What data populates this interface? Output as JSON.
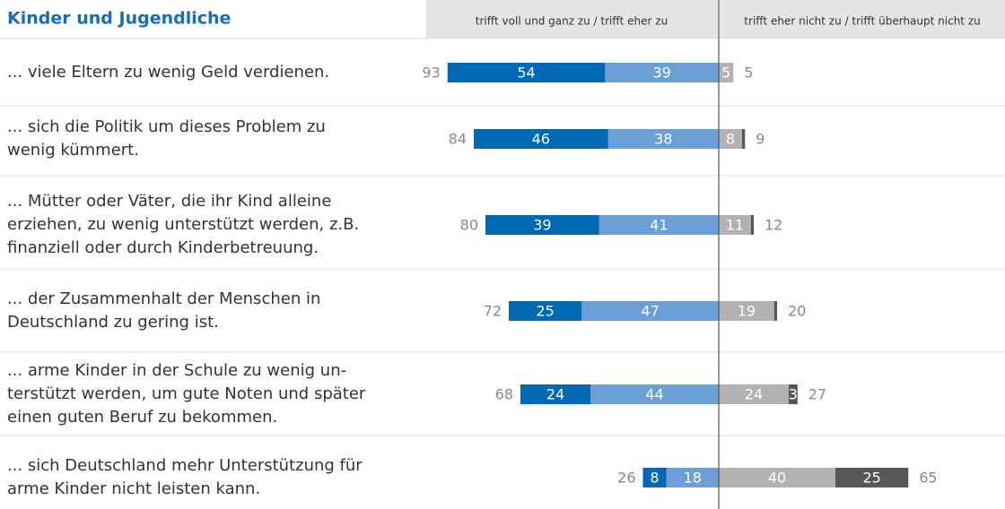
{
  "chart_data": {
    "type": "diverging-bar",
    "title": "Kinder und Jugendliche",
    "header_left": "trifft voll und ganz zu / trifft eher zu",
    "header_right": "trifft eher nicht zu / trifft überhaupt nicht zu",
    "categories": [
      [
        "... viele Eltern zu wenig Geld verdienen."
      ],
      [
        "... sich die Politik um dieses Problem zu",
        "wenig kümmert."
      ],
      [
        "... Mütter oder Väter, die ihr Kind alleine",
        "erziehen, zu wenig unterstützt werden, z.B.",
        "finanziell oder durch Kinderbetreuung."
      ],
      [
        "... der Zusammenhalt der Menschen in",
        "Deutschland zu gering ist."
      ],
      [
        "... arme Kinder in der Schule zu wenig un-",
        "terstützt werden, um gute Noten und später",
        "einen guten Beruf zu bekommen."
      ],
      [
        "... sich Deutschland mehr Unterstützung für",
        "arme Kinder nicht leisten kann."
      ]
    ],
    "series": [
      {
        "color": "#0069b4",
        "side": "left",
        "values": [
          54,
          46,
          39,
          25,
          24,
          8
        ]
      },
      {
        "color": "#6b9fd6",
        "side": "left",
        "values": [
          39,
          38,
          41,
          47,
          44,
          18
        ]
      },
      {
        "color": "#b2b2b2",
        "side": "right",
        "values": [
          5,
          8,
          11,
          19,
          24,
          40
        ]
      },
      {
        "color": "#575757",
        "side": "right",
        "values": [
          0,
          1,
          1,
          1,
          3,
          25
        ],
        "value_labels": [
          null,
          null,
          null,
          null,
          "3",
          "25"
        ]
      }
    ],
    "totals_left": [
      93,
      84,
      80,
      72,
      68,
      26
    ],
    "totals_right": [
      5,
      9,
      12,
      20,
      27,
      65
    ]
  }
}
